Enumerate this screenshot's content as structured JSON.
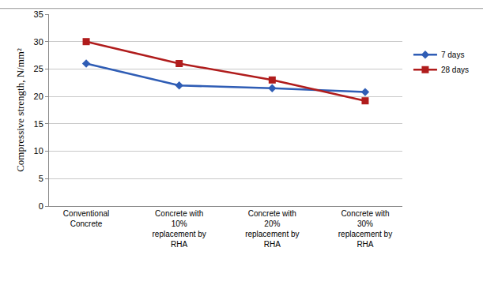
{
  "chart_data": {
    "type": "line",
    "y_label": "Compressive strength, N/mm²",
    "categories": [
      "Conventional Concrete",
      "Concrete with 10% replacement by RHA",
      "Concrete with 20% replacement by RHA",
      "Concrete with 30% replacement by RHA"
    ],
    "series": [
      {
        "name": "7 days",
        "color": "#2f5db5",
        "marker": "diamond",
        "values": [
          26,
          22,
          21.5,
          20.8
        ]
      },
      {
        "name": "28 days",
        "color": "#b01c1c",
        "marker": "square",
        "values": [
          30,
          26,
          23,
          19.2
        ]
      }
    ],
    "ylim": [
      0,
      35
    ],
    "yticks": [
      0,
      5,
      10,
      15,
      20,
      25,
      30,
      35
    ],
    "grid": true,
    "legend": "right"
  }
}
